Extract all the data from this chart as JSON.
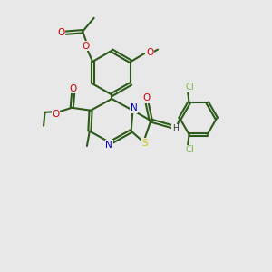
{
  "bg_color": "#e8e8e8",
  "bond_color": "#2d5a1b",
  "n_color": "#0000cc",
  "s_color": "#cccc00",
  "o_color": "#cc0000",
  "cl_color": "#7ab648",
  "fig_size": [
    3.0,
    3.0
  ],
  "dpi": 100,
  "xlim": [
    0,
    10
  ],
  "ylim": [
    0,
    10
  ]
}
